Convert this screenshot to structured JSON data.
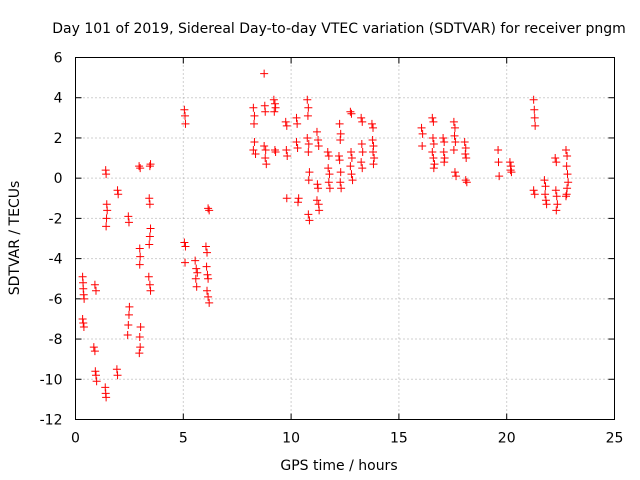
{
  "chart_data": {
    "type": "scatter",
    "title": "Day 101 of 2019, Sidereal Day-to-day VTEC variation (SDTVAR) for receiver pngm",
    "xlabel": "GPS time / hours",
    "ylabel": "SDTVAR / TECUs",
    "xlim": [
      0,
      25
    ],
    "ylim": [
      -12,
      6
    ],
    "xticks": [
      0,
      5,
      10,
      15,
      20,
      25
    ],
    "yticks": [
      -12,
      -10,
      -8,
      -6,
      -4,
      -2,
      0,
      2,
      4,
      6
    ],
    "grid": true,
    "marker": "plus",
    "color": "#ff0000",
    "series": [
      {
        "name": "SDTVAR",
        "points": [
          [
            0.33,
            -4.9
          ],
          [
            0.35,
            -5.2
          ],
          [
            0.36,
            -5.5
          ],
          [
            0.38,
            -5.8
          ],
          [
            0.4,
            -6.0
          ],
          [
            0.33,
            -7.0
          ],
          [
            0.36,
            -7.2
          ],
          [
            0.39,
            -7.4
          ],
          [
            0.9,
            -5.3
          ],
          [
            0.95,
            -5.6
          ],
          [
            0.85,
            -8.4
          ],
          [
            0.9,
            -8.6
          ],
          [
            0.92,
            -9.6
          ],
          [
            0.95,
            -9.8
          ],
          [
            0.98,
            -10.1
          ],
          [
            1.4,
            0.4
          ],
          [
            1.42,
            0.2
          ],
          [
            1.45,
            -1.3
          ],
          [
            1.47,
            -1.6
          ],
          [
            1.44,
            -2.0
          ],
          [
            1.42,
            -2.4
          ],
          [
            1.38,
            -10.4
          ],
          [
            1.4,
            -10.7
          ],
          [
            1.42,
            -10.9
          ],
          [
            1.95,
            -0.6
          ],
          [
            1.98,
            -0.8
          ],
          [
            1.92,
            -9.5
          ],
          [
            1.95,
            -9.8
          ],
          [
            2.45,
            -1.9
          ],
          [
            2.48,
            -2.2
          ],
          [
            2.5,
            -6.4
          ],
          [
            2.48,
            -6.8
          ],
          [
            2.45,
            -7.3
          ],
          [
            2.42,
            -7.8
          ],
          [
            2.95,
            0.6
          ],
          [
            3.0,
            0.5
          ],
          [
            2.98,
            -3.5
          ],
          [
            3.0,
            -3.9
          ],
          [
            2.98,
            -4.3
          ],
          [
            3.02,
            -7.4
          ],
          [
            2.98,
            -7.9
          ],
          [
            3.0,
            -8.4
          ],
          [
            2.96,
            -8.7
          ],
          [
            3.45,
            0.6
          ],
          [
            3.48,
            0.7
          ],
          [
            3.42,
            -1.0
          ],
          [
            3.45,
            -1.3
          ],
          [
            3.48,
            -2.5
          ],
          [
            3.45,
            -2.9
          ],
          [
            3.42,
            -3.3
          ],
          [
            3.4,
            -4.9
          ],
          [
            3.45,
            -5.3
          ],
          [
            3.48,
            -5.6
          ],
          [
            5.05,
            3.4
          ],
          [
            5.08,
            3.1
          ],
          [
            5.1,
            2.7
          ],
          [
            5.05,
            -3.2
          ],
          [
            5.1,
            -3.4
          ],
          [
            5.08,
            -4.2
          ],
          [
            5.55,
            -4.1
          ],
          [
            5.6,
            -4.5
          ],
          [
            5.58,
            -5.0
          ],
          [
            5.62,
            -5.4
          ],
          [
            5.65,
            -4.7
          ],
          [
            6.05,
            -3.4
          ],
          [
            6.1,
            -3.7
          ],
          [
            6.08,
            -4.4
          ],
          [
            6.12,
            -4.8
          ],
          [
            6.15,
            -5.0
          ],
          [
            6.1,
            -5.6
          ],
          [
            6.15,
            -5.9
          ],
          [
            6.2,
            -6.2
          ],
          [
            6.15,
            -1.5
          ],
          [
            6.2,
            -1.6
          ],
          [
            8.25,
            3.5
          ],
          [
            8.3,
            3.1
          ],
          [
            8.28,
            2.7
          ],
          [
            8.3,
            1.8
          ],
          [
            8.25,
            1.4
          ],
          [
            8.35,
            1.2
          ],
          [
            8.75,
            5.2
          ],
          [
            8.78,
            3.6
          ],
          [
            8.8,
            3.3
          ],
          [
            8.75,
            1.6
          ],
          [
            8.82,
            1.4
          ],
          [
            8.8,
            1.0
          ],
          [
            8.85,
            0.7
          ],
          [
            9.2,
            3.9
          ],
          [
            9.25,
            3.7
          ],
          [
            9.28,
            3.5
          ],
          [
            9.22,
            3.3
          ],
          [
            9.25,
            1.4
          ],
          [
            9.28,
            1.3
          ],
          [
            9.75,
            2.8
          ],
          [
            9.8,
            2.6
          ],
          [
            9.78,
            1.4
          ],
          [
            9.82,
            1.1
          ],
          [
            9.8,
            -1.0
          ],
          [
            10.25,
            3.0
          ],
          [
            10.28,
            2.7
          ],
          [
            10.25,
            1.8
          ],
          [
            10.3,
            1.5
          ],
          [
            10.35,
            -1.0
          ],
          [
            10.32,
            -1.2
          ],
          [
            10.75,
            3.9
          ],
          [
            10.8,
            3.5
          ],
          [
            10.78,
            3.1
          ],
          [
            10.75,
            2.0
          ],
          [
            10.82,
            1.7
          ],
          [
            10.8,
            1.3
          ],
          [
            10.85,
            0.3
          ],
          [
            10.82,
            -0.1
          ],
          [
            10.8,
            -1.8
          ],
          [
            10.85,
            -2.1
          ],
          [
            11.2,
            2.3
          ],
          [
            11.25,
            1.9
          ],
          [
            11.28,
            1.6
          ],
          [
            11.22,
            -0.3
          ],
          [
            11.25,
            -0.5
          ],
          [
            11.2,
            -1.1
          ],
          [
            11.28,
            -1.3
          ],
          [
            11.3,
            -1.6
          ],
          [
            11.7,
            1.3
          ],
          [
            11.75,
            1.1
          ],
          [
            11.72,
            0.5
          ],
          [
            11.78,
            0.2
          ],
          [
            11.75,
            -0.2
          ],
          [
            11.8,
            -0.5
          ],
          [
            12.25,
            2.7
          ],
          [
            12.3,
            2.2
          ],
          [
            12.28,
            1.9
          ],
          [
            12.22,
            1.1
          ],
          [
            12.25,
            0.9
          ],
          [
            12.3,
            0.3
          ],
          [
            12.28,
            -0.2
          ],
          [
            12.32,
            -0.5
          ],
          [
            12.75,
            3.3
          ],
          [
            12.8,
            3.2
          ],
          [
            12.78,
            1.3
          ],
          [
            12.82,
            1.0
          ],
          [
            12.75,
            0.6
          ],
          [
            12.8,
            0.2
          ],
          [
            12.85,
            -0.1
          ],
          [
            13.25,
            3.0
          ],
          [
            13.3,
            2.8
          ],
          [
            13.28,
            1.7
          ],
          [
            13.32,
            1.3
          ],
          [
            13.25,
            0.8
          ],
          [
            13.3,
            0.5
          ],
          [
            13.75,
            2.7
          ],
          [
            13.8,
            2.5
          ],
          [
            13.78,
            1.9
          ],
          [
            13.82,
            1.6
          ],
          [
            13.8,
            1.3
          ],
          [
            13.85,
            1.0
          ],
          [
            13.82,
            0.7
          ],
          [
            16.05,
            2.5
          ],
          [
            16.1,
            2.2
          ],
          [
            16.08,
            1.6
          ],
          [
            16.55,
            3.0
          ],
          [
            16.6,
            2.8
          ],
          [
            16.58,
            2.0
          ],
          [
            16.62,
            1.7
          ],
          [
            16.55,
            1.3
          ],
          [
            16.6,
            1.0
          ],
          [
            16.65,
            0.7
          ],
          [
            16.62,
            0.5
          ],
          [
            17.05,
            2.0
          ],
          [
            17.1,
            1.8
          ],
          [
            17.08,
            1.3
          ],
          [
            17.12,
            1.0
          ],
          [
            17.1,
            0.8
          ],
          [
            17.55,
            2.8
          ],
          [
            17.6,
            2.5
          ],
          [
            17.58,
            2.1
          ],
          [
            17.62,
            1.8
          ],
          [
            17.55,
            1.4
          ],
          [
            17.6,
            0.3
          ],
          [
            17.65,
            0.1
          ],
          [
            18.05,
            1.8
          ],
          [
            18.1,
            1.5
          ],
          [
            18.08,
            1.2
          ],
          [
            18.12,
            1.0
          ],
          [
            18.1,
            -0.1
          ],
          [
            18.15,
            -0.2
          ],
          [
            19.6,
            1.4
          ],
          [
            19.62,
            0.8
          ],
          [
            19.65,
            0.1
          ],
          [
            20.15,
            0.8
          ],
          [
            20.2,
            0.6
          ],
          [
            20.18,
            0.4
          ],
          [
            20.22,
            0.3
          ],
          [
            21.25,
            3.9
          ],
          [
            21.28,
            3.4
          ],
          [
            21.3,
            3.0
          ],
          [
            21.32,
            2.6
          ],
          [
            21.25,
            -0.6
          ],
          [
            21.3,
            -0.8
          ],
          [
            21.75,
            -0.1
          ],
          [
            21.8,
            -0.4
          ],
          [
            21.78,
            -0.8
          ],
          [
            21.82,
            -1.1
          ],
          [
            21.85,
            -1.3
          ],
          [
            22.25,
            1.0
          ],
          [
            22.3,
            0.8
          ],
          [
            22.28,
            -0.6
          ],
          [
            22.32,
            -0.9
          ],
          [
            22.35,
            -1.3
          ],
          [
            22.3,
            -1.6
          ],
          [
            22.75,
            1.4
          ],
          [
            22.8,
            1.1
          ],
          [
            22.78,
            0.6
          ],
          [
            22.82,
            0.2
          ],
          [
            22.85,
            -0.2
          ],
          [
            22.8,
            -0.5
          ],
          [
            22.78,
            -0.8
          ],
          [
            22.75,
            -0.9
          ]
        ]
      }
    ]
  }
}
